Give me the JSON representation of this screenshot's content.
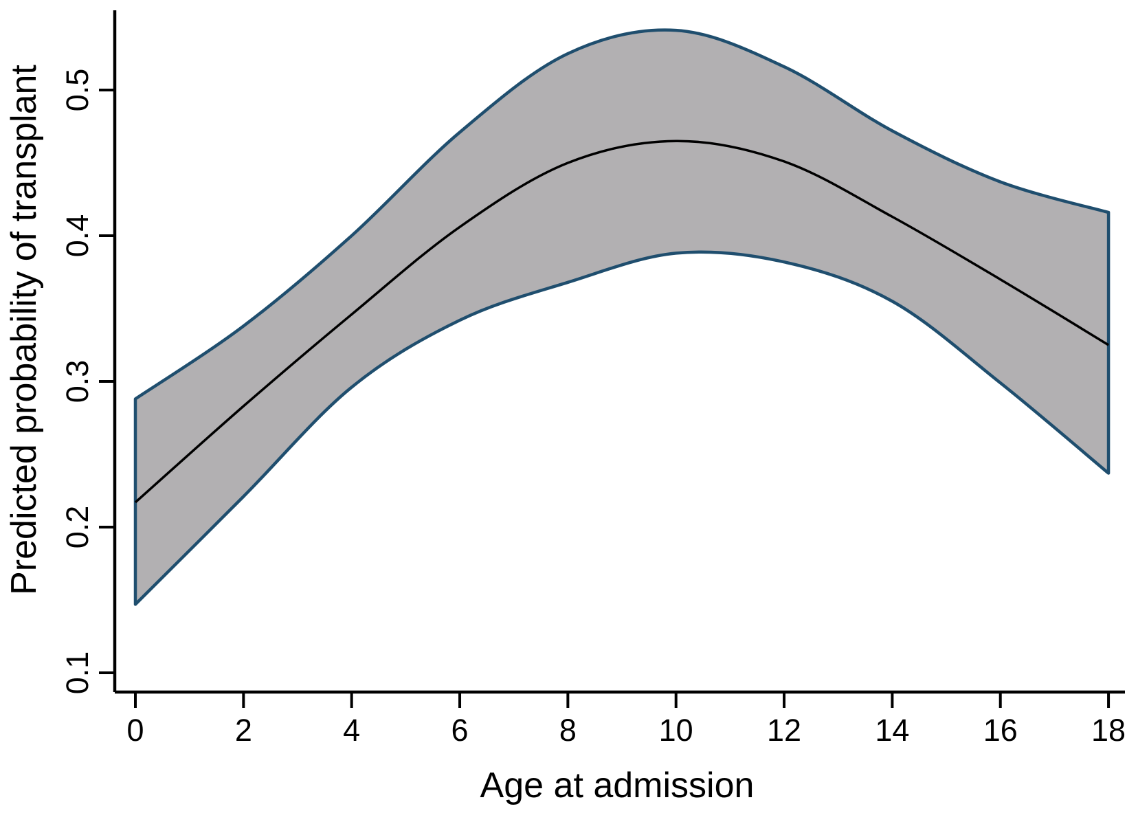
{
  "chart_data": {
    "type": "line",
    "title": "",
    "xlabel": "Age at admission",
    "ylabel": "Predicted probability of transplant",
    "x": [
      0,
      2,
      4,
      6,
      8,
      10,
      12,
      14,
      16,
      18
    ],
    "series": [
      {
        "name": "predicted_probability",
        "values": [
          0.217,
          0.283,
          0.346,
          0.406,
          0.45,
          0.465,
          0.451,
          0.413,
          0.37,
          0.325
        ]
      },
      {
        "name": "ci_upper",
        "values": [
          0.288,
          0.338,
          0.4,
          0.471,
          0.525,
          0.541,
          0.516,
          0.472,
          0.437,
          0.416
        ]
      },
      {
        "name": "ci_lower",
        "values": [
          0.147,
          0.221,
          0.296,
          0.342,
          0.368,
          0.388,
          0.382,
          0.355,
          0.299,
          0.237
        ]
      }
    ],
    "x_tick_labels": [
      "0",
      "2",
      "4",
      "6",
      "8",
      "10",
      "12",
      "14",
      "16",
      "18"
    ],
    "y_ticks": [
      0.1,
      0.2,
      0.3,
      0.4,
      0.5
    ],
    "y_tick_labels": [
      "0.1",
      "0.2",
      "0.3",
      "0.4",
      "0.5"
    ],
    "xlim": [
      0,
      18
    ],
    "grid": false,
    "legend": null,
    "colors": {
      "band_fill": "#b2b0b2",
      "band_border": "#1f4e6e",
      "mid_line": "#000000",
      "axis": "#000000",
      "background": "#ffffff"
    }
  }
}
